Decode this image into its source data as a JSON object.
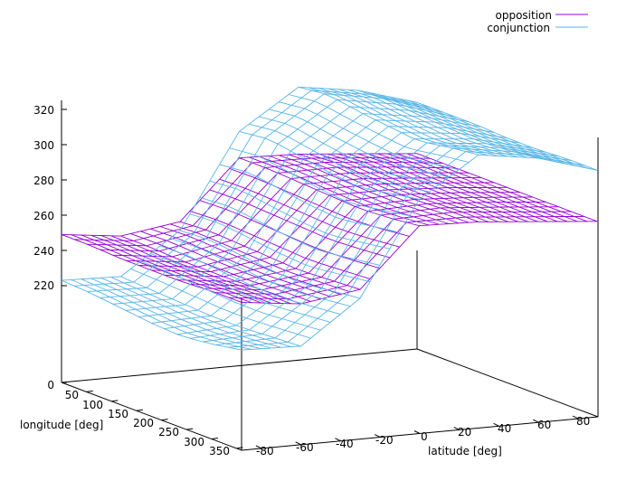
{
  "chart_data": {
    "type": "surface",
    "zlabel_ticks": [
      "0",
      "220",
      "240",
      "260",
      "280",
      "300",
      "320"
    ],
    "z_ticks_values": [
      0,
      220,
      240,
      260,
      280,
      300,
      320
    ],
    "xlabel": "latitude [deg]",
    "ylabel": "longitude [deg]",
    "x_ticks": [
      "-80",
      "-60",
      "-40",
      "-20",
      "0",
      "20",
      "40",
      "60",
      "80"
    ],
    "x_tick_values": [
      -80,
      -60,
      -40,
      -20,
      0,
      20,
      40,
      60,
      80
    ],
    "y_ticks": [
      "50",
      "100",
      "150",
      "200",
      "250",
      "300",
      "350"
    ],
    "y_tick_values": [
      50,
      100,
      150,
      200,
      250,
      300,
      350
    ],
    "x_range": [
      -90,
      90
    ],
    "y_range": [
      0,
      360
    ],
    "z_range": [
      0,
      330
    ],
    "grid": false,
    "legend_position": "top-right",
    "series": [
      {
        "name": "opposition",
        "color": "#9400d3",
        "latitude": [
          -90,
          -60,
          -30,
          0,
          30,
          60,
          90
        ],
        "longitude": [
          0,
          60,
          120,
          180,
          240,
          300,
          360
        ],
        "z": [
          [
            249,
            245,
            250,
            283,
            282,
            279,
            276
          ],
          [
            249,
            245,
            251,
            283,
            283,
            280,
            276
          ],
          [
            248,
            244,
            250,
            282,
            282,
            279,
            276
          ],
          [
            248,
            244,
            249,
            281,
            281,
            279,
            276
          ],
          [
            248,
            244,
            248,
            280,
            281,
            279,
            276
          ],
          [
            249,
            245,
            249,
            281,
            282,
            279,
            276
          ],
          [
            249,
            245,
            250,
            283,
            282,
            279,
            276
          ]
        ]
      },
      {
        "name": "conjunction",
        "color": "#56b4e9",
        "latitude": [
          -90,
          -60,
          -30,
          0,
          30,
          60,
          90
        ],
        "longitude": [
          0,
          60,
          120,
          180,
          240,
          300,
          360
        ],
        "z": [
          [
            223,
            222,
            245,
            298,
            320,
            315,
            305
          ],
          [
            222,
            221,
            246,
            300,
            322,
            316,
            305
          ],
          [
            220,
            220,
            244,
            297,
            319,
            314,
            305
          ],
          [
            218,
            219,
            242,
            294,
            317,
            313,
            304
          ],
          [
            217,
            219,
            241,
            292,
            315,
            312,
            304
          ],
          [
            219,
            220,
            243,
            295,
            318,
            313,
            305
          ],
          [
            222,
            221,
            245,
            298,
            320,
            315,
            305
          ]
        ]
      }
    ]
  }
}
